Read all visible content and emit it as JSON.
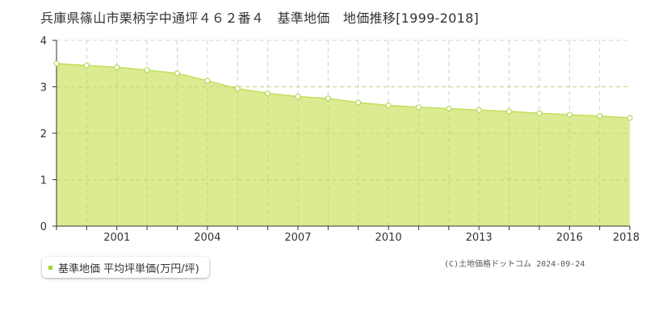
{
  "title": "兵庫県篠山市栗柄字中通坪４６２番４　基準地価　地価推移[1999-2018]",
  "legend": {
    "label": "基準地価 平均坪単価(万円/坪)",
    "color": "#a6d137"
  },
  "credit": "(C)土地価格ドットコム 2024-09-24",
  "colors": {
    "area_fill": "#dceb91",
    "line": "#bfe05a",
    "point_stroke": "#b5d85a",
    "grid": "#d0d0d0",
    "axis": "#333333"
  },
  "chart_data": {
    "type": "area",
    "title": "兵庫県篠山市栗柄字中通坪４６２番４　基準地価　地価推移[1999-2018]",
    "xlabel": "",
    "ylabel": "",
    "x": [
      1999,
      2000,
      2001,
      2002,
      2003,
      2004,
      2005,
      2006,
      2007,
      2008,
      2009,
      2010,
      2011,
      2012,
      2013,
      2014,
      2015,
      2016,
      2017,
      2018
    ],
    "series": [
      {
        "name": "基準地価 平均坪単価(万円/坪)",
        "values": [
          3.5,
          3.46,
          3.42,
          3.36,
          3.29,
          3.13,
          2.96,
          2.86,
          2.79,
          2.75,
          2.66,
          2.6,
          2.56,
          2.53,
          2.5,
          2.47,
          2.43,
          2.4,
          2.37,
          2.33
        ]
      }
    ],
    "xlim": [
      1999,
      2018
    ],
    "ylim": [
      0,
      4
    ],
    "x_tick_labels": [
      "2001",
      "2004",
      "2007",
      "2010",
      "2013",
      "2016",
      "2018"
    ],
    "x_tick_values": [
      2001,
      2004,
      2007,
      2010,
      2013,
      2016,
      2018
    ],
    "y_tick_labels": [
      "0",
      "1",
      "2",
      "3",
      "4"
    ],
    "y_tick_values": [
      0,
      1,
      2,
      3,
      4
    ],
    "grid": true,
    "legend_position": "bottom-left"
  }
}
